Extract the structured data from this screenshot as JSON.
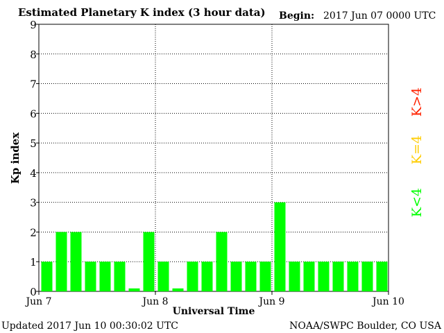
{
  "header": {
    "title": "Estimated Planetary K index (3 hour data)",
    "begin_label": "Begin:",
    "begin_value": "2017 Jun 07 0000 UTC"
  },
  "footer": {
    "updated": "Updated 2017 Jun 10 00:30:02 UTC",
    "source": "NOAA/SWPC Boulder, CO USA"
  },
  "legend": {
    "high": "K>4",
    "equal": "K=4",
    "low": "K<4"
  },
  "colors": {
    "low": "#00ff00",
    "equal": "#ffcc00",
    "high": "#ff2200",
    "frame": "#000000"
  },
  "chart_data": {
    "type": "bar",
    "title": "Estimated Planetary K index (3 hour data)",
    "xlabel": "Universal Time",
    "ylabel": "Kp index",
    "ylim": [
      0,
      9
    ],
    "yticks": [
      "0",
      "1",
      "2",
      "3",
      "4",
      "5",
      "6",
      "7",
      "8",
      "9"
    ],
    "xticks": [
      "Jun 7",
      "Jun 8",
      "Jun 9",
      "Jun 10"
    ],
    "grid": true,
    "bar_interval_hours": 3,
    "values": [
      1,
      2,
      2,
      1,
      1,
      1,
      0.1,
      2,
      1,
      0.1,
      1,
      1,
      2,
      1,
      1,
      1,
      3,
      1,
      1,
      1,
      1,
      1,
      1,
      1
    ]
  }
}
